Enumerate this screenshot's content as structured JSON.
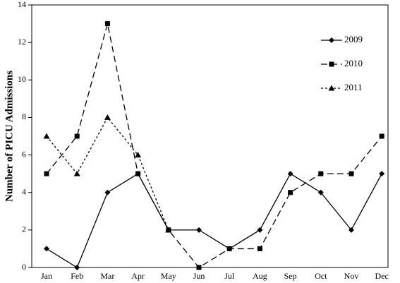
{
  "chart_data": {
    "type": "line",
    "y_label": "Number of PICU Admissions",
    "categories": [
      "Jan",
      "Feb",
      "Mar",
      "Apr",
      "May",
      "Jun",
      "Jul",
      "Aug",
      "Sep",
      "Oct",
      "Nov",
      "Dec"
    ],
    "series": [
      {
        "name": "2009",
        "color": "#000000",
        "marker": "diamond",
        "dash": "solid",
        "values": [
          1,
          0,
          4,
          5,
          2,
          2,
          1,
          2,
          5,
          4,
          2,
          5
        ]
      },
      {
        "name": "2010",
        "color": "#000000",
        "marker": "square",
        "dash": "long",
        "values": [
          5,
          7,
          13,
          5,
          2,
          0,
          1,
          1,
          4,
          5,
          5,
          7
        ]
      },
      {
        "name": "2011",
        "color": "#000000",
        "marker": "triangle",
        "dash": "short",
        "values": [
          7,
          5,
          8,
          6,
          2,
          null,
          null,
          null,
          null,
          null,
          null,
          null
        ]
      }
    ],
    "ylim": [
      0,
      14
    ],
    "yticks": [
      0,
      2,
      4,
      6,
      8,
      10,
      12,
      14
    ],
    "grid": false,
    "legend": "top-right"
  }
}
